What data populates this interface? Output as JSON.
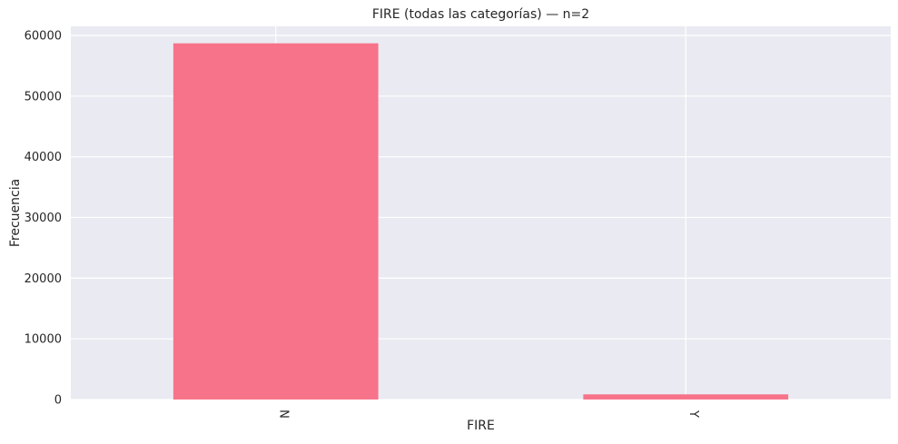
{
  "chart_data": {
    "type": "bar",
    "title": "FIRE (todas las categorías) — n=2",
    "xlabel": "FIRE",
    "ylabel": "Frecuencia",
    "categories": [
      "N",
      "Y"
    ],
    "values": [
      58700,
      850
    ],
    "ylim": [
      0,
      61500
    ],
    "yticks": [
      0,
      10000,
      20000,
      30000,
      40000,
      50000,
      60000
    ],
    "ytick_labels": [
      "0",
      "10000",
      "20000",
      "30000",
      "40000",
      "50000",
      "60000"
    ],
    "bar_color": "#f7738a",
    "background_color": "#eaeaf2",
    "grid": true,
    "xtick_rotation": "vertical"
  }
}
